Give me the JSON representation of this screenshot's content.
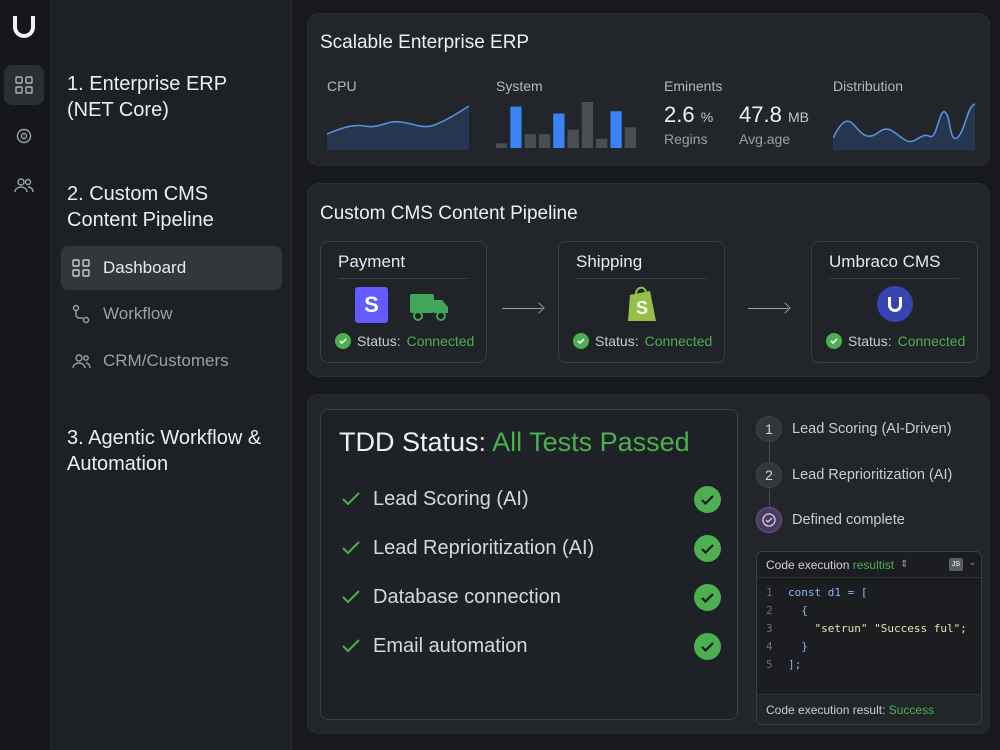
{
  "nav": {
    "sections": [
      {
        "label": "1. Enterprise ERP (NET Core)"
      },
      {
        "label": "2. Custom CMS Content Pipeline"
      },
      {
        "label": "3. Agentic Workflow & Automation"
      }
    ],
    "items": [
      {
        "label": "Dashboard",
        "icon": "grid-icon",
        "active": true
      },
      {
        "label": "Workflow",
        "icon": "workflow-icon",
        "active": false
      },
      {
        "label": "CRM/Customers",
        "icon": "users-icon",
        "active": false
      }
    ]
  },
  "erp": {
    "title": "Scalable Enterprise ERP",
    "cpu_label": "CPU",
    "system_label": "System",
    "system_bars": [
      0.1,
      0.9,
      0.3,
      0.3,
      0.75,
      0.4,
      1.0,
      0.2,
      0.8,
      0.45
    ],
    "eminents_label": "Eminents",
    "value1": "2.6",
    "value1_unit": "%",
    "value1_sub": "Regins",
    "value2": "47.8",
    "value2_unit": "MB",
    "value2_sub": "Avg.age",
    "distribution_label": "Distribution"
  },
  "pipeline": {
    "title": "Custom CMS Content Pipeline",
    "status_prefix": "Status:",
    "status_value": "Connected",
    "boxes": [
      {
        "title": "Payment"
      },
      {
        "title": "Shipping"
      },
      {
        "title": "Umbraco CMS"
      }
    ]
  },
  "tdd": {
    "title_prefix": "TDD Status:",
    "title_status": "All Tests Passed",
    "tests": [
      {
        "label": "Lead Scoring (AI)"
      },
      {
        "label": "Lead Reprioritization (AI)"
      },
      {
        "label": "Database connection"
      },
      {
        "label": "Email automation"
      }
    ]
  },
  "steps": [
    {
      "num": "1",
      "label": "Lead Scoring (AI-Driven)"
    },
    {
      "num": "2",
      "label": "Lead Reprioritization (AI)"
    },
    {
      "num": "",
      "label": "Defined complete"
    }
  ],
  "code": {
    "header_prefix": "Code execution",
    "header_highlight": "resultist",
    "badge": "JS",
    "lines": [
      {
        "n": "1",
        "text": "const d1 = ["
      },
      {
        "n": "2",
        "text": "  {"
      },
      {
        "n": "3",
        "text": "    \"setrun\" \"Success ful\";"
      },
      {
        "n": "4",
        "text": "  }"
      },
      {
        "n": "5",
        "text": "];"
      }
    ],
    "footer_prefix": "Code execution result:",
    "footer_value": "Success"
  },
  "colors": {
    "accent_blue": "#3b82f6",
    "success_green": "#4caf50",
    "stripe": "#635bff",
    "shopify": "#95bf47",
    "umbraco": "#3544b1"
  }
}
